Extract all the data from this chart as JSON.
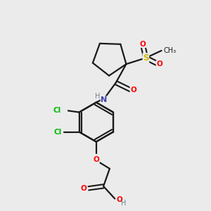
{
  "background_color": "#ebebeb",
  "bond_color": "#1a1a1a",
  "atom_colors": {
    "O": "#ff0000",
    "N": "#4040b0",
    "Cl": "#00bb00",
    "S": "#ccbb00",
    "C": "#1a1a1a",
    "H": "#708090"
  },
  "figsize": [
    3.0,
    3.0
  ],
  "dpi": 100
}
